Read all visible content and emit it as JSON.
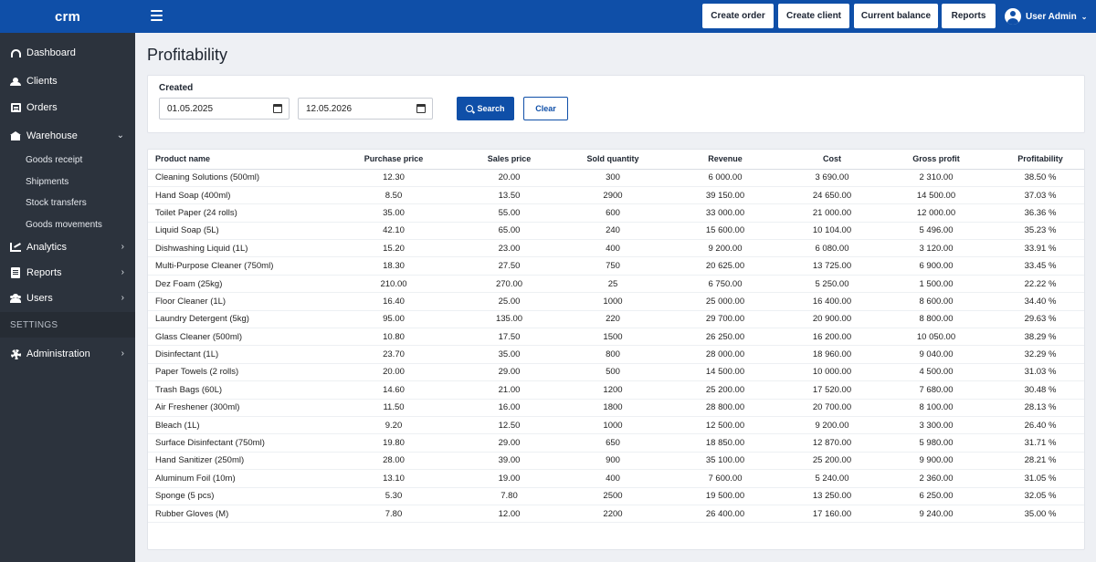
{
  "header": {
    "logo": "crm",
    "buttons": [
      "Create order",
      "Create client",
      "Current balance",
      "Reports"
    ],
    "user": "User Admin"
  },
  "sidebar": {
    "dashboard": "Dashboard",
    "clients": "Clients",
    "orders": "Orders",
    "warehouse": "Warehouse",
    "warehouse_items": [
      "Goods receipt",
      "Shipments",
      "Stock transfers",
      "Goods movements"
    ],
    "analytics": "Analytics",
    "reports": "Reports",
    "users": "Users",
    "settings_section": "SETTINGS",
    "administration": "Administration"
  },
  "page": {
    "title": "Profitability"
  },
  "filter": {
    "label": "Created",
    "date_from": "01.05.2025",
    "date_to": "12.05.2026",
    "search_label": "Search",
    "clear_label": "Clear"
  },
  "table": {
    "columns": [
      "Product name",
      "Purchase price",
      "Sales price",
      "Sold quantity",
      "Revenue",
      "Cost",
      "Gross profit",
      "Profitability"
    ],
    "rows": [
      [
        "Cleaning Solutions (500ml)",
        "12.30",
        "20.00",
        "300",
        "6 000.00",
        "3 690.00",
        "2 310.00",
        "38.50 %"
      ],
      [
        "Hand Soap (400ml)",
        "8.50",
        "13.50",
        "2900",
        "39 150.00",
        "24 650.00",
        "14 500.00",
        "37.03 %"
      ],
      [
        "Toilet Paper (24 rolls)",
        "35.00",
        "55.00",
        "600",
        "33 000.00",
        "21 000.00",
        "12 000.00",
        "36.36 %"
      ],
      [
        "Liquid Soap (5L)",
        "42.10",
        "65.00",
        "240",
        "15 600.00",
        "10 104.00",
        "5 496.00",
        "35.23 %"
      ],
      [
        "Dishwashing Liquid (1L)",
        "15.20",
        "23.00",
        "400",
        "9 200.00",
        "6 080.00",
        "3 120.00",
        "33.91 %"
      ],
      [
        "Multi-Purpose Cleaner (750ml)",
        "18.30",
        "27.50",
        "750",
        "20 625.00",
        "13 725.00",
        "6 900.00",
        "33.45 %"
      ],
      [
        "Dez Foam (25kg)",
        "210.00",
        "270.00",
        "25",
        "6 750.00",
        "5 250.00",
        "1 500.00",
        "22.22 %"
      ],
      [
        "Floor Cleaner (1L)",
        "16.40",
        "25.00",
        "1000",
        "25 000.00",
        "16 400.00",
        "8 600.00",
        "34.40 %"
      ],
      [
        "Laundry Detergent (5kg)",
        "95.00",
        "135.00",
        "220",
        "29 700.00",
        "20 900.00",
        "8 800.00",
        "29.63 %"
      ],
      [
        "Glass Cleaner (500ml)",
        "10.80",
        "17.50",
        "1500",
        "26 250.00",
        "16 200.00",
        "10 050.00",
        "38.29 %"
      ],
      [
        "Disinfectant (1L)",
        "23.70",
        "35.00",
        "800",
        "28 000.00",
        "18 960.00",
        "9 040.00",
        "32.29 %"
      ],
      [
        "Paper Towels (2 rolls)",
        "20.00",
        "29.00",
        "500",
        "14 500.00",
        "10 000.00",
        "4 500.00",
        "31.03 %"
      ],
      [
        "Trash Bags (60L)",
        "14.60",
        "21.00",
        "1200",
        "25 200.00",
        "17 520.00",
        "7 680.00",
        "30.48 %"
      ],
      [
        "Air Freshener (300ml)",
        "11.50",
        "16.00",
        "1800",
        "28 800.00",
        "20 700.00",
        "8 100.00",
        "28.13 %"
      ],
      [
        "Bleach (1L)",
        "9.20",
        "12.50",
        "1000",
        "12 500.00",
        "9 200.00",
        "3 300.00",
        "26.40 %"
      ],
      [
        "Surface Disinfectant (750ml)",
        "19.80",
        "29.00",
        "650",
        "18 850.00",
        "12 870.00",
        "5 980.00",
        "31.71 %"
      ],
      [
        "Hand Sanitizer (250ml)",
        "28.00",
        "39.00",
        "900",
        "35 100.00",
        "25 200.00",
        "9 900.00",
        "28.21 %"
      ],
      [
        "Aluminum Foil (10m)",
        "13.10",
        "19.00",
        "400",
        "7 600.00",
        "5 240.00",
        "2 360.00",
        "31.05 %"
      ],
      [
        "Sponge (5 pcs)",
        "5.30",
        "7.80",
        "2500",
        "19 500.00",
        "13 250.00",
        "6 250.00",
        "32.05 %"
      ],
      [
        "Rubber Gloves (M)",
        "7.80",
        "12.00",
        "2200",
        "26 400.00",
        "17 160.00",
        "9 240.00",
        "35.00 %"
      ]
    ]
  }
}
